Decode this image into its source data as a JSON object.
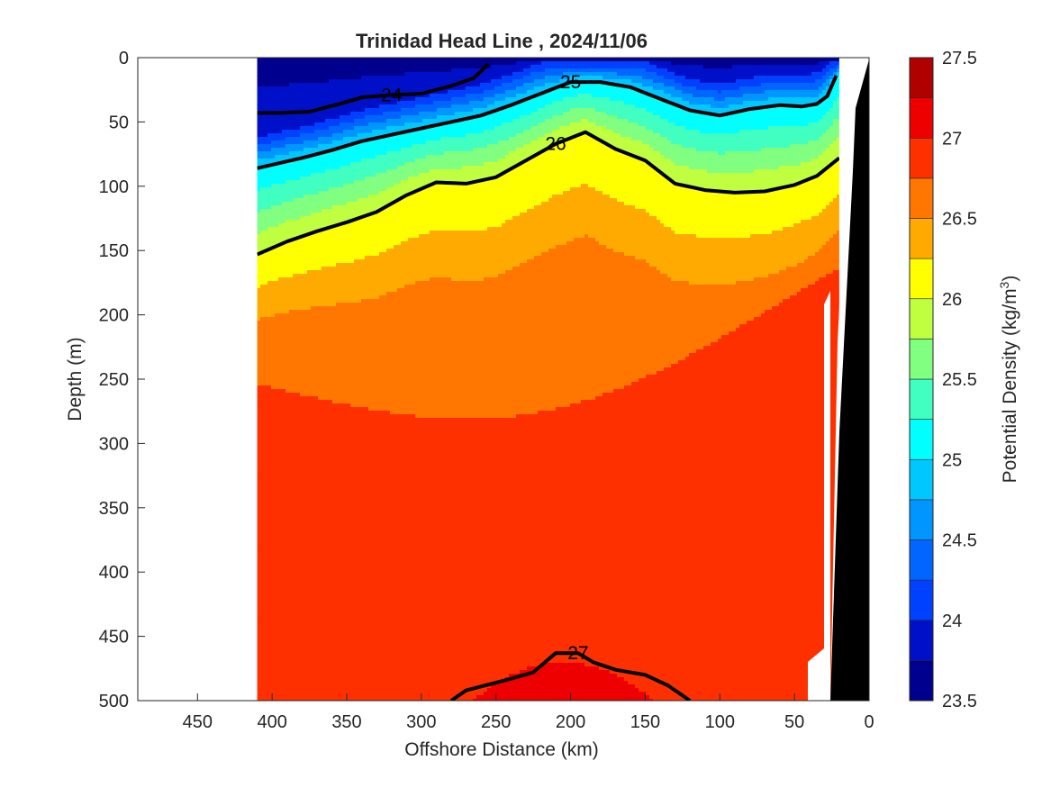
{
  "chart_data": {
    "type": "contour",
    "title": "Trinidad Head Line , 2024/11/06",
    "xlabel": "Offshore Distance (km)",
    "ylabel": "Depth (m)",
    "colorbar_label": "Potential Density (kg/m",
    "colorbar_label_sup": "3",
    "colorbar_label_end": ")",
    "xlim": [
      490,
      0
    ],
    "ylim": [
      500,
      0
    ],
    "x_reversed": true,
    "y_reversed": true,
    "x_ticks": [
      450,
      400,
      350,
      300,
      250,
      200,
      150,
      100,
      50,
      0
    ],
    "y_ticks": [
      0,
      50,
      100,
      150,
      200,
      250,
      300,
      350,
      400,
      450,
      500
    ],
    "color_levels": [
      23.5,
      23.75,
      24,
      24.25,
      24.5,
      24.75,
      25,
      25.25,
      25.5,
      25.75,
      26,
      26.25,
      26.5,
      26.75,
      27,
      27.25,
      27.5
    ],
    "colorbar_ticks": [
      23.5,
      24,
      24.5,
      25,
      25.5,
      26,
      26.5,
      27,
      27.5
    ],
    "colors": [
      "#00008f",
      "#0010c8",
      "#0040ff",
      "#0066ff",
      "#0096ff",
      "#00c8ff",
      "#00ffff",
      "#40ffc0",
      "#80ff80",
      "#c0ff40",
      "#ffff00",
      "#ffaa00",
      "#ff7700",
      "#ff3000",
      "#ee0000",
      "#b00000"
    ],
    "data_extent_x": [
      410,
      20
    ],
    "data_extent_depth_max": 500,
    "labeled_contours": [
      {
        "level": 24,
        "label": "24",
        "x": [
          410,
          395,
          375,
          355,
          340,
          320,
          300,
          280,
          265,
          255
        ],
        "depth": [
          43,
          43,
          42,
          36,
          31,
          29,
          28,
          22,
          16,
          5
        ]
      },
      {
        "level": 25,
        "label": "25",
        "x": [
          410,
          395,
          380,
          360,
          340,
          320,
          300,
          280,
          260,
          240,
          220,
          200,
          180,
          160,
          140,
          120,
          100,
          80,
          60,
          45,
          35,
          28,
          22
        ],
        "depth": [
          86,
          82,
          78,
          72,
          65,
          60,
          55,
          50,
          45,
          37,
          28,
          19,
          19,
          23,
          32,
          41,
          45,
          40,
          37,
          38,
          36,
          30,
          14
        ]
      },
      {
        "level": 26,
        "label": "26",
        "x": [
          410,
          390,
          370,
          350,
          330,
          310,
          290,
          270,
          250,
          230,
          210,
          190,
          170,
          150,
          130,
          110,
          90,
          70,
          50,
          35,
          20
        ],
        "depth": [
          153,
          143,
          135,
          128,
          120,
          107,
          97,
          98,
          93,
          80,
          67,
          58,
          71,
          80,
          98,
          103,
          105,
          104,
          99,
          92,
          78
        ]
      },
      {
        "level": 27,
        "label": "27",
        "x": [
          280,
          270,
          240,
          225,
          210,
          195,
          185,
          170,
          150,
          135,
          120
        ],
        "depth": [
          500,
          492,
          483,
          478,
          463,
          463,
          470,
          476,
          480,
          488,
          500
        ]
      }
    ]
  }
}
